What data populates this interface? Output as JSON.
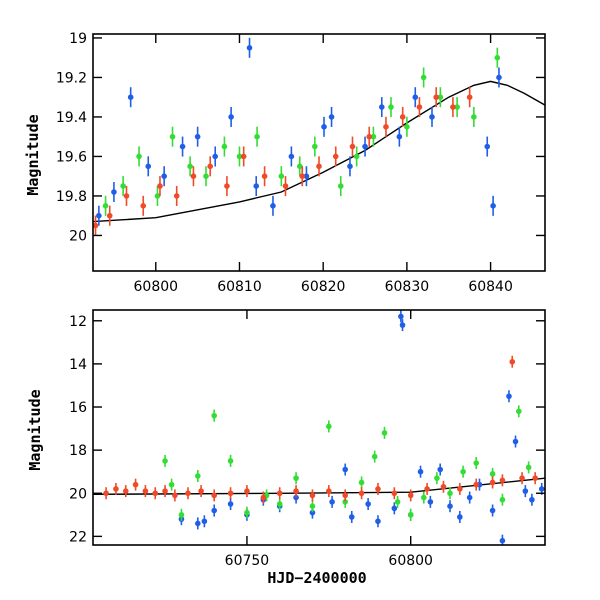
{
  "chart_data": [
    {
      "type": "scatter",
      "title": "",
      "xlabel": "",
      "ylabel": "Magnitude",
      "xlim": [
        60792.5,
        60846.5
      ],
      "ylim": [
        20.18,
        18.98
      ],
      "y_inverted": true,
      "xticks": [
        60800,
        60810,
        60820,
        60830,
        60840
      ],
      "yticks": [
        19,
        19.2,
        19.4,
        19.6,
        19.8,
        20
      ],
      "ytick_labels": [
        "19",
        "19.2",
        "19.4",
        "19.6",
        "19.8",
        "20"
      ],
      "grid": false,
      "legend": "none",
      "series": [
        {
          "color": "#1f5fe8",
          "points": [
            [
              60793.2,
              19.9
            ],
            [
              60795.0,
              19.78
            ],
            [
              60797.0,
              19.3
            ],
            [
              60799.1,
              19.65
            ],
            [
              60801.0,
              19.7
            ],
            [
              60803.2,
              19.55
            ],
            [
              60805.0,
              19.5
            ],
            [
              60807.1,
              19.6
            ],
            [
              60809.0,
              19.4
            ],
            [
              60811.2,
              19.05
            ],
            [
              60812.0,
              19.75
            ],
            [
              60814.0,
              19.85
            ],
            [
              60816.2,
              19.6
            ],
            [
              60818.0,
              19.7
            ],
            [
              60820.1,
              19.45
            ],
            [
              60821.0,
              19.4
            ],
            [
              60823.2,
              19.65
            ],
            [
              60825.0,
              19.55
            ],
            [
              60827.0,
              19.35
            ],
            [
              60829.1,
              19.5
            ],
            [
              60831.0,
              19.3
            ],
            [
              60833.0,
              19.4
            ],
            [
              60839.6,
              19.55
            ],
            [
              60840.3,
              19.85
            ],
            [
              60841.0,
              19.2
            ]
          ]
        },
        {
          "color": "#33dd33",
          "points": [
            [
              60794.0,
              19.85
            ],
            [
              60796.1,
              19.75
            ],
            [
              60798.0,
              19.6
            ],
            [
              60800.2,
              19.8
            ],
            [
              60802.0,
              19.5
            ],
            [
              60804.1,
              19.65
            ],
            [
              60806.0,
              19.7
            ],
            [
              60808.2,
              19.55
            ],
            [
              60810.0,
              19.6
            ],
            [
              60812.1,
              19.5
            ],
            [
              60815.0,
              19.7
            ],
            [
              60817.2,
              19.65
            ],
            [
              60819.0,
              19.55
            ],
            [
              60822.1,
              19.75
            ],
            [
              60824.0,
              19.6
            ],
            [
              60826.0,
              19.5
            ],
            [
              60828.1,
              19.35
            ],
            [
              60830.0,
              19.45
            ],
            [
              60832.0,
              19.2
            ],
            [
              60834.0,
              19.3
            ],
            [
              60836.0,
              19.35
            ],
            [
              60838.0,
              19.4
            ],
            [
              60840.8,
              19.1
            ]
          ]
        },
        {
          "color": "#f04a28",
          "points": [
            [
              60792.8,
              19.95
            ],
            [
              60794.5,
              19.9
            ],
            [
              60796.5,
              19.8
            ],
            [
              60798.5,
              19.85
            ],
            [
              60800.5,
              19.75
            ],
            [
              60802.5,
              19.8
            ],
            [
              60804.5,
              19.7
            ],
            [
              60806.5,
              19.65
            ],
            [
              60808.5,
              19.75
            ],
            [
              60810.5,
              19.6
            ],
            [
              60813.0,
              19.7
            ],
            [
              60815.5,
              19.75
            ],
            [
              60817.5,
              19.7
            ],
            [
              60819.5,
              19.65
            ],
            [
              60821.5,
              19.6
            ],
            [
              60823.5,
              19.55
            ],
            [
              60825.5,
              19.5
            ],
            [
              60827.5,
              19.45
            ],
            [
              60829.5,
              19.4
            ],
            [
              60831.5,
              19.35
            ],
            [
              60833.5,
              19.3
            ],
            [
              60835.5,
              19.35
            ],
            [
              60837.5,
              19.3
            ]
          ]
        }
      ],
      "model_curve": {
        "color": "#000000",
        "points": [
          [
            60792.5,
            19.93
          ],
          [
            60800,
            19.91
          ],
          [
            60810,
            19.83
          ],
          [
            60815,
            19.78
          ],
          [
            60820,
            19.68
          ],
          [
            60825,
            19.57
          ],
          [
            60830,
            19.43
          ],
          [
            60835,
            19.3
          ],
          [
            60838,
            19.24
          ],
          [
            60840,
            19.22
          ],
          [
            60842,
            19.24
          ],
          [
            60844,
            19.28
          ],
          [
            60846.5,
            19.34
          ]
        ]
      }
    },
    {
      "type": "scatter",
      "title": "",
      "xlabel": "HJD−2400000",
      "ylabel": "Magnitude",
      "xlim": [
        60703,
        60841
      ],
      "ylim": [
        22.4,
        11.5
      ],
      "y_inverted": true,
      "xticks": [
        60750,
        60800
      ],
      "yticks": [
        12,
        14,
        16,
        18,
        20,
        22
      ],
      "ytick_labels": [
        "12",
        "14",
        "16",
        "18",
        "20",
        "22"
      ],
      "grid": false,
      "legend": "none",
      "series": [
        {
          "color": "#1f5fe8",
          "points": [
            [
              60730,
              21.2
            ],
            [
              60735,
              21.4
            ],
            [
              60737,
              21.3
            ],
            [
              60740,
              20.8
            ],
            [
              60745,
              20.5
            ],
            [
              60750,
              21.0
            ],
            [
              60755,
              20.3
            ],
            [
              60760,
              20.6
            ],
            [
              60765,
              20.2
            ],
            [
              60770,
              20.9
            ],
            [
              60776,
              20.4
            ],
            [
              60780,
              18.9
            ],
            [
              60782,
              21.1
            ],
            [
              60787,
              20.5
            ],
            [
              60790,
              21.3
            ],
            [
              60795,
              20.7
            ],
            [
              60797,
              11.8
            ],
            [
              60797.5,
              12.2
            ],
            [
              60800,
              21.0
            ],
            [
              60803,
              19.0
            ],
            [
              60806,
              20.4
            ],
            [
              60809,
              18.9
            ],
            [
              60812,
              20.6
            ],
            [
              60815,
              21.1
            ],
            [
              60818,
              20.2
            ],
            [
              60821,
              19.6
            ],
            [
              60825,
              20.8
            ],
            [
              60828,
              22.2
            ],
            [
              60830,
              15.5
            ],
            [
              60832,
              17.6
            ],
            [
              60835,
              19.9
            ],
            [
              60837,
              20.3
            ],
            [
              60840,
              19.8
            ]
          ]
        },
        {
          "color": "#33dd33",
          "points": [
            [
              60725,
              18.5
            ],
            [
              60727,
              19.6
            ],
            [
              60730,
              21.0
            ],
            [
              60735,
              19.2
            ],
            [
              60740,
              16.4
            ],
            [
              60745,
              18.5
            ],
            [
              60750,
              20.9
            ],
            [
              60756,
              20.1
            ],
            [
              60760,
              20.5
            ],
            [
              60765,
              19.3
            ],
            [
              60770,
              20.6
            ],
            [
              60775,
              16.9
            ],
            [
              60780,
              20.4
            ],
            [
              60785,
              19.5
            ],
            [
              60789,
              18.3
            ],
            [
              60792,
              17.2
            ],
            [
              60796,
              20.4
            ],
            [
              60800,
              21.0
            ],
            [
              60804,
              20.2
            ],
            [
              60808,
              19.3
            ],
            [
              60812,
              20.0
            ],
            [
              60816,
              19.0
            ],
            [
              60820,
              18.6
            ],
            [
              60825,
              19.1
            ],
            [
              60828,
              20.3
            ],
            [
              60833,
              16.2
            ],
            [
              60836,
              18.8
            ]
          ]
        },
        {
          "color": "#f04a28",
          "points": [
            [
              60707,
              20.0
            ],
            [
              60710,
              19.8
            ],
            [
              60713,
              19.9
            ],
            [
              60716,
              19.6
            ],
            [
              60719,
              19.9
            ],
            [
              60722,
              20.0
            ],
            [
              60725,
              19.9
            ],
            [
              60728,
              20.1
            ],
            [
              60732,
              20.0
            ],
            [
              60736,
              19.9
            ],
            [
              60740,
              20.1
            ],
            [
              60745,
              20.0
            ],
            [
              60750,
              19.9
            ],
            [
              60755,
              20.2
            ],
            [
              60760,
              20.0
            ],
            [
              60765,
              19.9
            ],
            [
              60770,
              20.1
            ],
            [
              60775,
              19.9
            ],
            [
              60780,
              20.1
            ],
            [
              60785,
              20.0
            ],
            [
              60790,
              19.8
            ],
            [
              60795,
              20.0
            ],
            [
              60800,
              20.1
            ],
            [
              60805,
              19.8
            ],
            [
              60810,
              19.7
            ],
            [
              60815,
              19.8
            ],
            [
              60820,
              19.6
            ],
            [
              60825,
              19.5
            ],
            [
              60828,
              19.4
            ],
            [
              60831,
              13.9
            ],
            [
              60834,
              19.3
            ],
            [
              60838,
              19.3
            ]
          ]
        }
      ],
      "model_curve": {
        "color": "#000000",
        "points": [
          [
            60703,
            20.05
          ],
          [
            60760,
            20.0
          ],
          [
            60800,
            19.95
          ],
          [
            60841,
            19.3
          ]
        ]
      }
    }
  ]
}
